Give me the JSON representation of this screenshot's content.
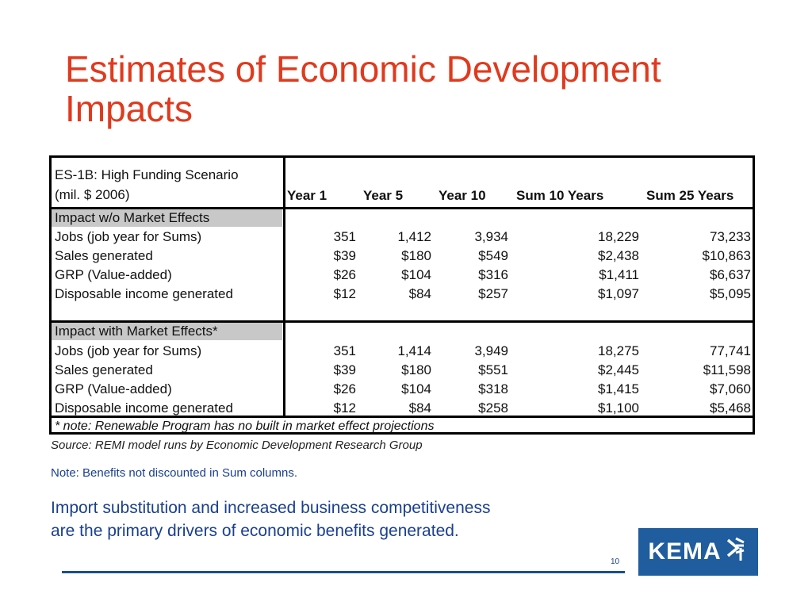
{
  "title": {
    "line1": "Estimates of Economic Development",
    "line2": "Impacts"
  },
  "table": {
    "scenario_line1": "ES-1B: High Funding Scenario",
    "scenario_line2": "(mil. $ 2006)",
    "columns": [
      "Year 1",
      "Year 5",
      "Year 10",
      "Sum 10 Years",
      "Sum 25 Years"
    ],
    "sections": [
      {
        "header": "Impact w/o Market Effects",
        "rows": [
          {
            "label": "Jobs (job year for Sums)",
            "values": [
              "351",
              "1,412",
              "3,934",
              "18,229",
              "73,233"
            ]
          },
          {
            "label": "Sales generated",
            "values": [
              "$39",
              "$180",
              "$549",
              "$2,438",
              "$10,863"
            ]
          },
          {
            "label": "GRP (Value-added)",
            "values": [
              "$26",
              "$104",
              "$316",
              "$1,411",
              "$6,637"
            ]
          },
          {
            "label": "Disposable income generated",
            "values": [
              "$12",
              "$84",
              "$257",
              "$1,097",
              "$5,095"
            ]
          }
        ]
      },
      {
        "header": "Impact with Market Effects*",
        "rows": [
          {
            "label": "Jobs (job year for Sums)",
            "values": [
              "351",
              "1,414",
              "3,949",
              "18,275",
              "77,741"
            ]
          },
          {
            "label": "Sales generated",
            "values": [
              "$39",
              "$180",
              "$551",
              "$2,445",
              "$11,598"
            ]
          },
          {
            "label": "GRP (Value-added)",
            "values": [
              "$26",
              "$104",
              "$318",
              "$1,415",
              "$7,060"
            ]
          },
          {
            "label": "Disposable income generated",
            "values": [
              "$12",
              "$84",
              "$258",
              "$1,100",
              "$5,468"
            ]
          }
        ]
      }
    ],
    "footnote": "* note: Renewable Program has no built in market effect projections"
  },
  "source": "Source: REMI model runs by Economic Development Research Group",
  "note": "Note:  Benefits not discounted in Sum columns.",
  "body": {
    "line1": "Import substitution and increased business competitiveness",
    "line2": "are the primary drivers of economic benefits generated."
  },
  "page_number": "10",
  "logo": {
    "text": "KEMA",
    "icon": "kema-mark-icon"
  },
  "colors": {
    "title": "#e03a1e",
    "body": "#1a3f8f",
    "logo_bg": "#1f5d9e"
  }
}
